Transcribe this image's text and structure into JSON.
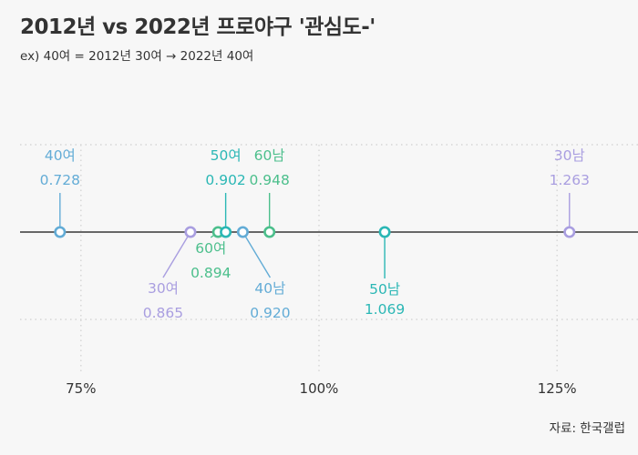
{
  "header": {
    "title": "2012년 vs 2022년 프로야구 '관심도-'",
    "subtitle": "ex) 40여 = 2012년 30여 → 2022년 40여"
  },
  "footer": {
    "source": "자료: 한국갤럽"
  },
  "colors": {
    "purple": "#a99ee0",
    "blue": "#63acd6",
    "teal": "#2bb7b5",
    "green": "#4cbf8c",
    "axis": "#111111",
    "background": "#f7f7f7"
  },
  "chart_data": {
    "type": "dot",
    "title": "2012년 vs 2022년 프로야구 '관심도-'",
    "xlim": [
      0.665,
      1.335
    ],
    "ticks": [
      0.75,
      1.0,
      1.25
    ],
    "tick_labels": [
      "75%",
      "100%",
      "125%"
    ],
    "grid": true,
    "points": [
      {
        "label": "40여",
        "value": 0.728,
        "value_label": "0.728",
        "color": "blue",
        "side": "above"
      },
      {
        "label": "30여",
        "value": 0.865,
        "value_label": "0.865",
        "color": "purple",
        "side": "below"
      },
      {
        "label": "60여",
        "value": 0.894,
        "value_label": "0.894",
        "color": "green",
        "side": "below"
      },
      {
        "label": "50여",
        "value": 0.902,
        "value_label": "0.902",
        "color": "teal",
        "side": "above"
      },
      {
        "label": "40남",
        "value": 0.92,
        "value_label": "0.920",
        "color": "blue",
        "side": "below"
      },
      {
        "label": "60남",
        "value": 0.948,
        "value_label": "0.948",
        "color": "green",
        "side": "above"
      },
      {
        "label": "50남",
        "value": 1.069,
        "value_label": "1.069",
        "color": "teal",
        "side": "below"
      },
      {
        "label": "30남",
        "value": 1.263,
        "value_label": "1.263",
        "color": "purple",
        "side": "above"
      }
    ]
  }
}
